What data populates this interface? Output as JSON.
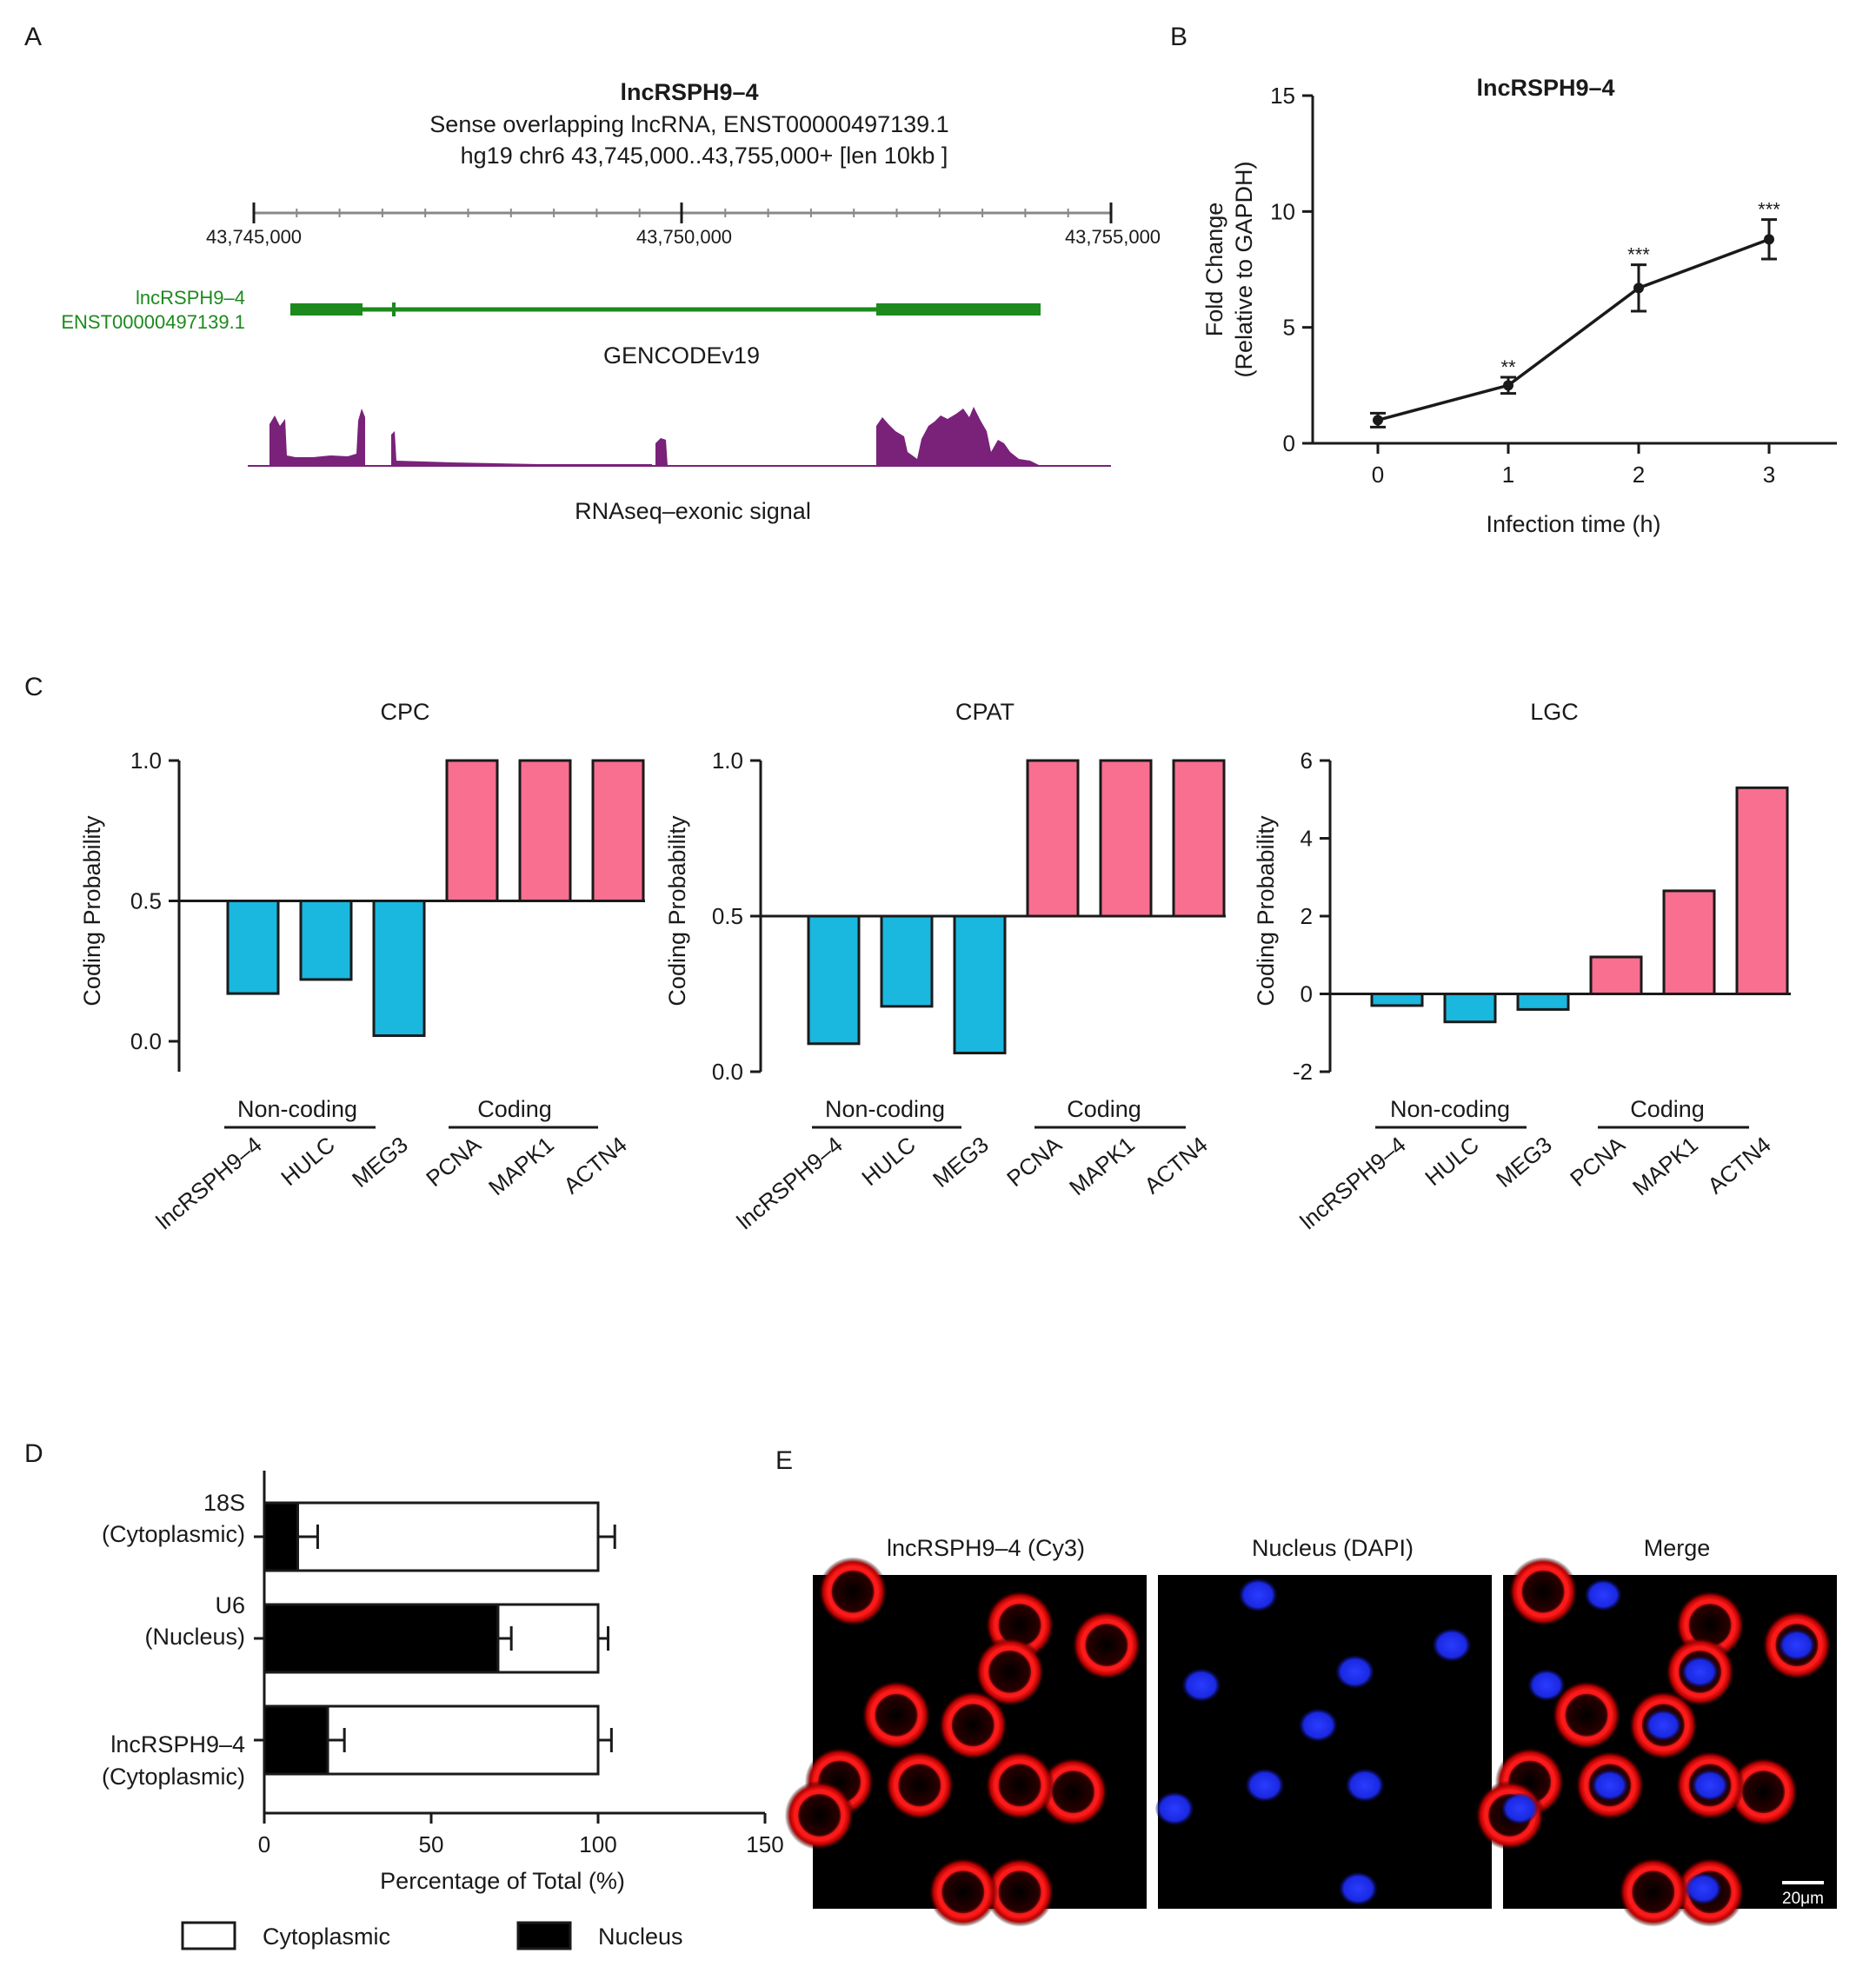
{
  "colors": {
    "noncoding": "#1ab7de",
    "coding": "#f86f90",
    "gencode": "#1c8a1c",
    "rnaseq": "#7a217a",
    "cy3": "#ff1a1a",
    "dapi": "#1a2aff"
  },
  "panelA": {
    "letter": "A",
    "title": "lncRSPH9–4",
    "subtitle1": "Sense overlapping lncRNA, ENST00000497139.1",
    "subtitle2": "hg19 chr6 43,745,000..43,755,000+ [len 10kb ]",
    "ruler_labels": [
      "43,745,000",
      "43,750,000",
      "43,755,000"
    ],
    "gene_label1": "lncRSPH9–4",
    "gene_label2": "ENST00000497139.1",
    "track1_label": "GENCODEv19",
    "track2_label": "RNAseq–exonic signal"
  },
  "panelB": {
    "letter": "B",
    "chart_data": {
      "type": "line",
      "title": "lncRSPH9–4",
      "xlabel": "Infection time (h)",
      "ylabel_line1": "Fold Change",
      "ylabel_line2": "(Relative to GAPDH)",
      "x": [
        0,
        1,
        2,
        3
      ],
      "y": [
        1.0,
        2.5,
        6.7,
        8.8
      ],
      "err": [
        0.3,
        0.35,
        1.0,
        0.85
      ],
      "sig": [
        "",
        "**",
        "***",
        "***"
      ],
      "xlim": [
        -0.5,
        3.5
      ],
      "ylim": [
        0,
        15
      ],
      "yticks": [
        0,
        5,
        10,
        15
      ],
      "xticks": [
        0,
        1,
        2,
        3
      ]
    }
  },
  "panelC": {
    "letter": "C",
    "group_noncoding": "Non-coding",
    "group_coding": "Coding",
    "ylabel": "Coding Probability",
    "chart_data": [
      {
        "type": "bar",
        "title": "CPC",
        "categories": [
          "lncRSPH9–4",
          "HULC",
          "MEG3",
          "PCNA",
          "MAPK1",
          "ACTN4"
        ],
        "values": [
          0.17,
          0.22,
          0.02,
          1.0,
          1.0,
          1.0
        ],
        "baseline": 0.5,
        "ylim": [
          -0.1,
          1.0
        ],
        "yticks": [
          0.0,
          0.5,
          1.0
        ],
        "ytick_labels": [
          "0.0",
          "0.5",
          "1.0"
        ]
      },
      {
        "type": "bar",
        "title": "CPAT",
        "categories": [
          "lncRSPH9–4",
          "HULC",
          "MEG3",
          "PCNA",
          "MAPK1",
          "ACTN4"
        ],
        "values": [
          0.09,
          0.21,
          0.06,
          1.0,
          1.0,
          1.0
        ],
        "baseline": 0.5,
        "ylim": [
          0.0,
          1.0
        ],
        "yticks": [
          0.0,
          0.5,
          1.0
        ],
        "ytick_labels": [
          "0.0",
          "0.5",
          "1.0"
        ]
      },
      {
        "type": "bar",
        "title": "LGC",
        "categories": [
          "lncRSPH9–4",
          "HULC",
          "MEG3",
          "PCNA",
          "MAPK1",
          "ACTN4"
        ],
        "values": [
          -0.3,
          -0.72,
          -0.4,
          0.95,
          2.65,
          5.3
        ],
        "baseline": 0,
        "ylim": [
          -2,
          6
        ],
        "yticks": [
          -2,
          0,
          2,
          4,
          6
        ],
        "ytick_labels": [
          "-2",
          "0",
          "2",
          "4",
          "6"
        ]
      }
    ]
  },
  "panelD": {
    "letter": "D",
    "chart_data": {
      "type": "bar",
      "orientation": "horizontal-stacked",
      "categories": [
        {
          "line1": "18S",
          "line2": "(Cytoplasmic)"
        },
        {
          "line1": "U6",
          "line2": "(Nucleus)"
        },
        {
          "line1": "lncRSPH9–4",
          "line2": "(Cytoplasmic)"
        }
      ],
      "series": [
        {
          "name": "Nucleus",
          "values": [
            10,
            70,
            19
          ],
          "err": [
            6,
            4,
            5
          ]
        },
        {
          "name": "Cytoplasmic",
          "values": [
            90,
            30,
            81
          ],
          "err": [
            5,
            3,
            4
          ]
        }
      ],
      "xlabel": "Percentage of Total (%)",
      "xlim": [
        0,
        150
      ],
      "xticks": [
        0,
        50,
        100,
        150
      ],
      "legend": [
        "Cytoplasmic",
        "Nucleus"
      ]
    }
  },
  "panelE": {
    "letter": "E",
    "labels": [
      "lncRSPH9–4 (Cy3)",
      "Nucleus (DAPI)",
      "Merge"
    ],
    "scalebar": "20μm"
  }
}
